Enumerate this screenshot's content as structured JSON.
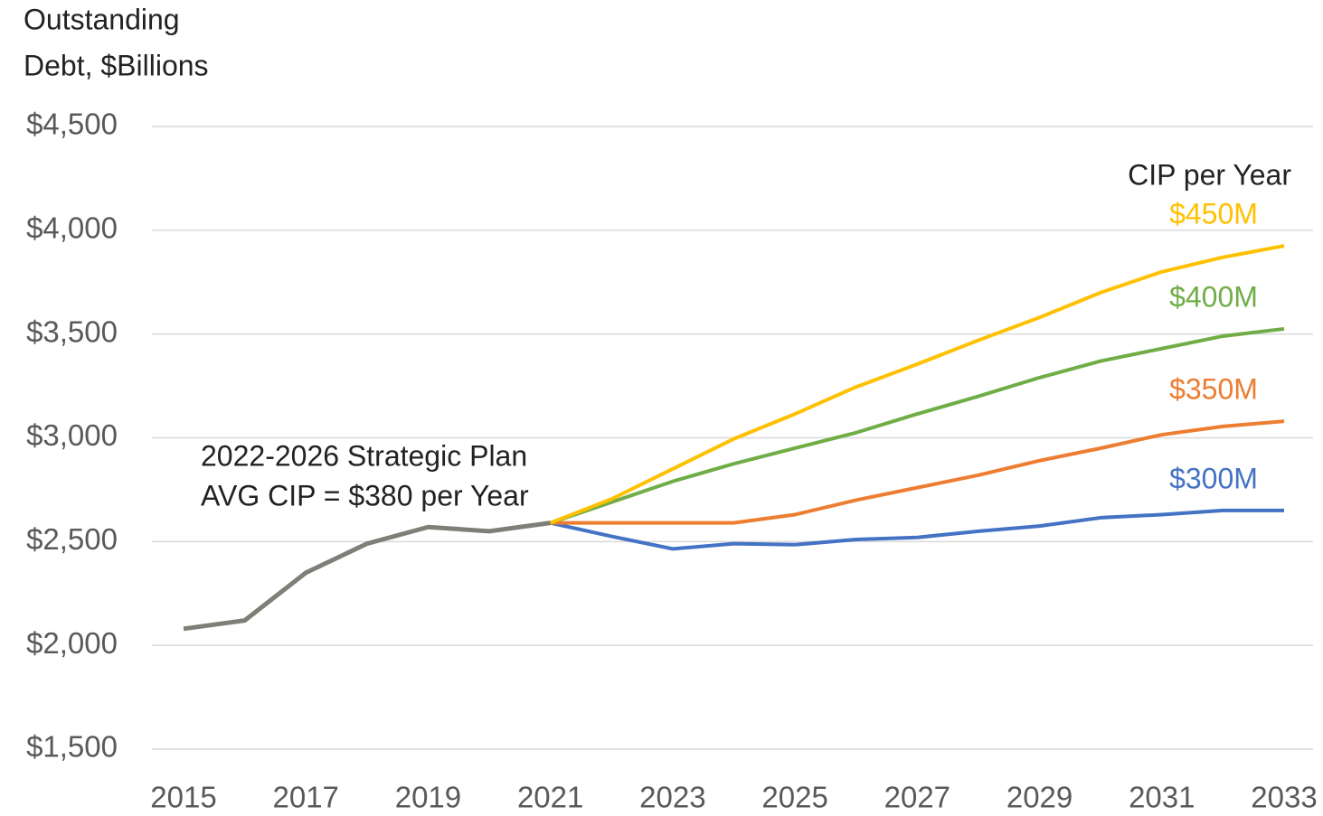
{
  "chart_data": {
    "type": "line",
    "ylabel_lines": [
      "Outstanding",
      "Debt, $Billions"
    ],
    "x": [
      2015,
      2016,
      2017,
      2018,
      2019,
      2020,
      2021,
      2022,
      2023,
      2024,
      2025,
      2026,
      2027,
      2028,
      2029,
      2030,
      2031,
      2032,
      2033
    ],
    "series": [
      {
        "color": "#4472c4",
        "name": "$300M",
        "values": [
          null,
          null,
          null,
          null,
          null,
          null,
          2590,
          2525,
          2465,
          2490,
          2485,
          2510,
          2520,
          2550,
          2575,
          2615,
          2630,
          2650,
          2650
        ]
      },
      {
        "color": "#ed7d31",
        "name": "$350M",
        "values": [
          null,
          null,
          null,
          null,
          null,
          null,
          2590,
          2590,
          2590,
          2590,
          2630,
          2700,
          2760,
          2820,
          2890,
          2950,
          3015,
          3055,
          3080
        ]
      },
      {
        "color": "#70ad47",
        "name": "$400M",
        "values": [
          null,
          null,
          null,
          null,
          null,
          null,
          2590,
          2690,
          2790,
          2875,
          2950,
          3025,
          3115,
          3200,
          3290,
          3370,
          3430,
          3490,
          3525
        ]
      },
      {
        "color": "#ffc000",
        "name": "$450M",
        "values": [
          null,
          null,
          null,
          null,
          null,
          null,
          2590,
          2705,
          2850,
          2995,
          3115,
          3245,
          3355,
          3470,
          3580,
          3700,
          3800,
          3870,
          3925
        ]
      },
      {
        "color": "#7f7f77",
        "values": [
          2080,
          2120,
          2350,
          2490,
          2570,
          2550,
          2590,
          null,
          null,
          null,
          null,
          null,
          null,
          null,
          null,
          null,
          null,
          null,
          null
        ]
      }
    ],
    "legend_title": "CIP per Year",
    "annotations": [
      "2022-2026 Strategic Plan",
      "AVG CIP = $380 per Year"
    ],
    "xlim": [
      2015,
      2033
    ],
    "xticks": [
      2015,
      2017,
      2019,
      2021,
      2023,
      2025,
      2027,
      2029,
      2031,
      2033
    ],
    "ylim": [
      1500,
      4500
    ],
    "yticks": [
      {
        "value": 1500,
        "label": "$1,500"
      },
      {
        "value": 2000,
        "label": "$2,000"
      },
      {
        "value": 2500,
        "label": "$2,500"
      },
      {
        "value": 3000,
        "label": "$3,000"
      },
      {
        "value": 3500,
        "label": "$3,500"
      },
      {
        "value": 4000,
        "label": "$4,000"
      },
      {
        "value": 4500,
        "label": "$4,500"
      }
    ],
    "grid": true
  }
}
